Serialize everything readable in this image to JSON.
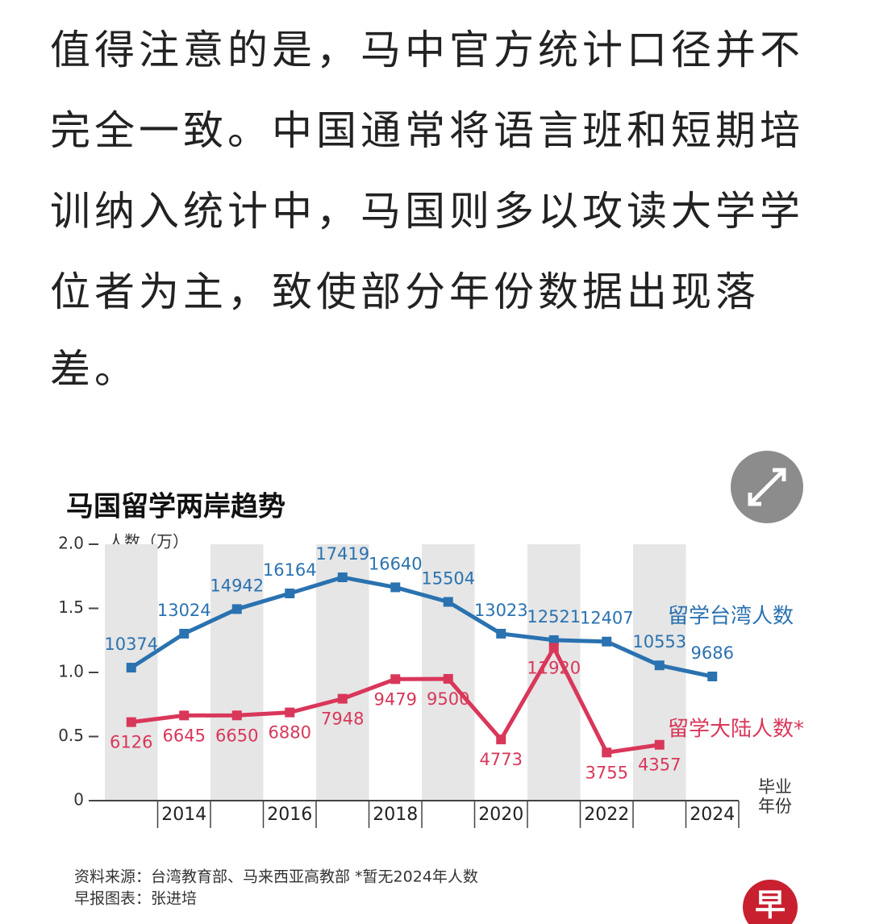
{
  "article": {
    "lines": [
      "值得注意的是，马中官方统计口径并不",
      "完全一致。中国通常将语言班和短期培",
      "训纳入统计中，马国则多以攻读大学学",
      "位者为主，致使部分年份数据出现落",
      "差。"
    ]
  },
  "chart_data": {
    "type": "line",
    "title": "马国留学两岸趋势",
    "y_label": "人数（万）",
    "x_label": [
      "毕业",
      "年份"
    ],
    "categories": [
      null,
      "2014",
      null,
      "2016",
      null,
      "2018",
      null,
      "2020",
      null,
      "2022",
      null,
      "2024"
    ],
    "series": [
      {
        "name": "留学台湾人数",
        "color": "#2a72b0",
        "values": [
          1.0374,
          1.3024,
          1.4942,
          1.6164,
          1.7419,
          1.664,
          1.5504,
          1.3023,
          1.2521,
          1.2407,
          1.0553,
          0.9686
        ],
        "value_labels": [
          "10374",
          "13024",
          "14942",
          "16164",
          "17419",
          "16640",
          "15504",
          "13023",
          "12521",
          "12407",
          "10553",
          "9686"
        ]
      },
      {
        "name": "留学大陆人数*",
        "color": "#d9375a",
        "values": [
          0.6126,
          0.6645,
          0.665,
          0.688,
          0.7948,
          0.9479,
          0.95,
          0.4773,
          1.192,
          0.3755,
          0.4357,
          null
        ],
        "value_labels": [
          "6126",
          "6645",
          "6650",
          "6880",
          "7948",
          "9479",
          "9500",
          "4773",
          "11920",
          "3755",
          "4357",
          null
        ]
      }
    ],
    "ylim": [
      0,
      2
    ],
    "yticks": [
      0,
      0.5,
      {
        "value": 1,
        "label": "1.0"
      },
      1.5,
      {
        "value": 2,
        "label": "2.0"
      }
    ],
    "source": "资料来源：台湾教育部、马来西亚高教部 *暂无2024年人数",
    "credit": "早报图表：张进培",
    "logo_text": "早"
  }
}
